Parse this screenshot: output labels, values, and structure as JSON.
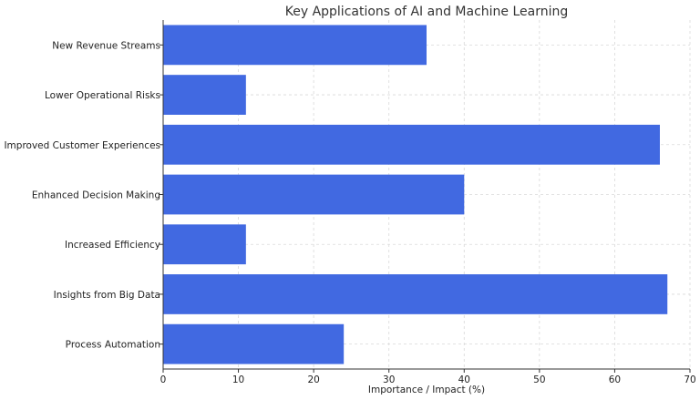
{
  "chart_data": {
    "type": "bar",
    "orientation": "horizontal",
    "title": "Key Applications of AI and Machine Learning",
    "xlabel": "Importance / Impact (%)",
    "ylabel": "",
    "categories": [
      "Process Automation",
      "Insights from Big Data",
      "Increased Efficiency",
      "Enhanced Decision Making",
      "Improved Customer Experiences",
      "Lower Operational Risks",
      "New Revenue Streams"
    ],
    "values": [
      24,
      67,
      11,
      40,
      66,
      11,
      35
    ],
    "xlim": [
      0,
      70
    ],
    "xticks": [
      0,
      10,
      20,
      30,
      40,
      50,
      60,
      70
    ],
    "grid": true,
    "bar_color": "#4169E1"
  }
}
